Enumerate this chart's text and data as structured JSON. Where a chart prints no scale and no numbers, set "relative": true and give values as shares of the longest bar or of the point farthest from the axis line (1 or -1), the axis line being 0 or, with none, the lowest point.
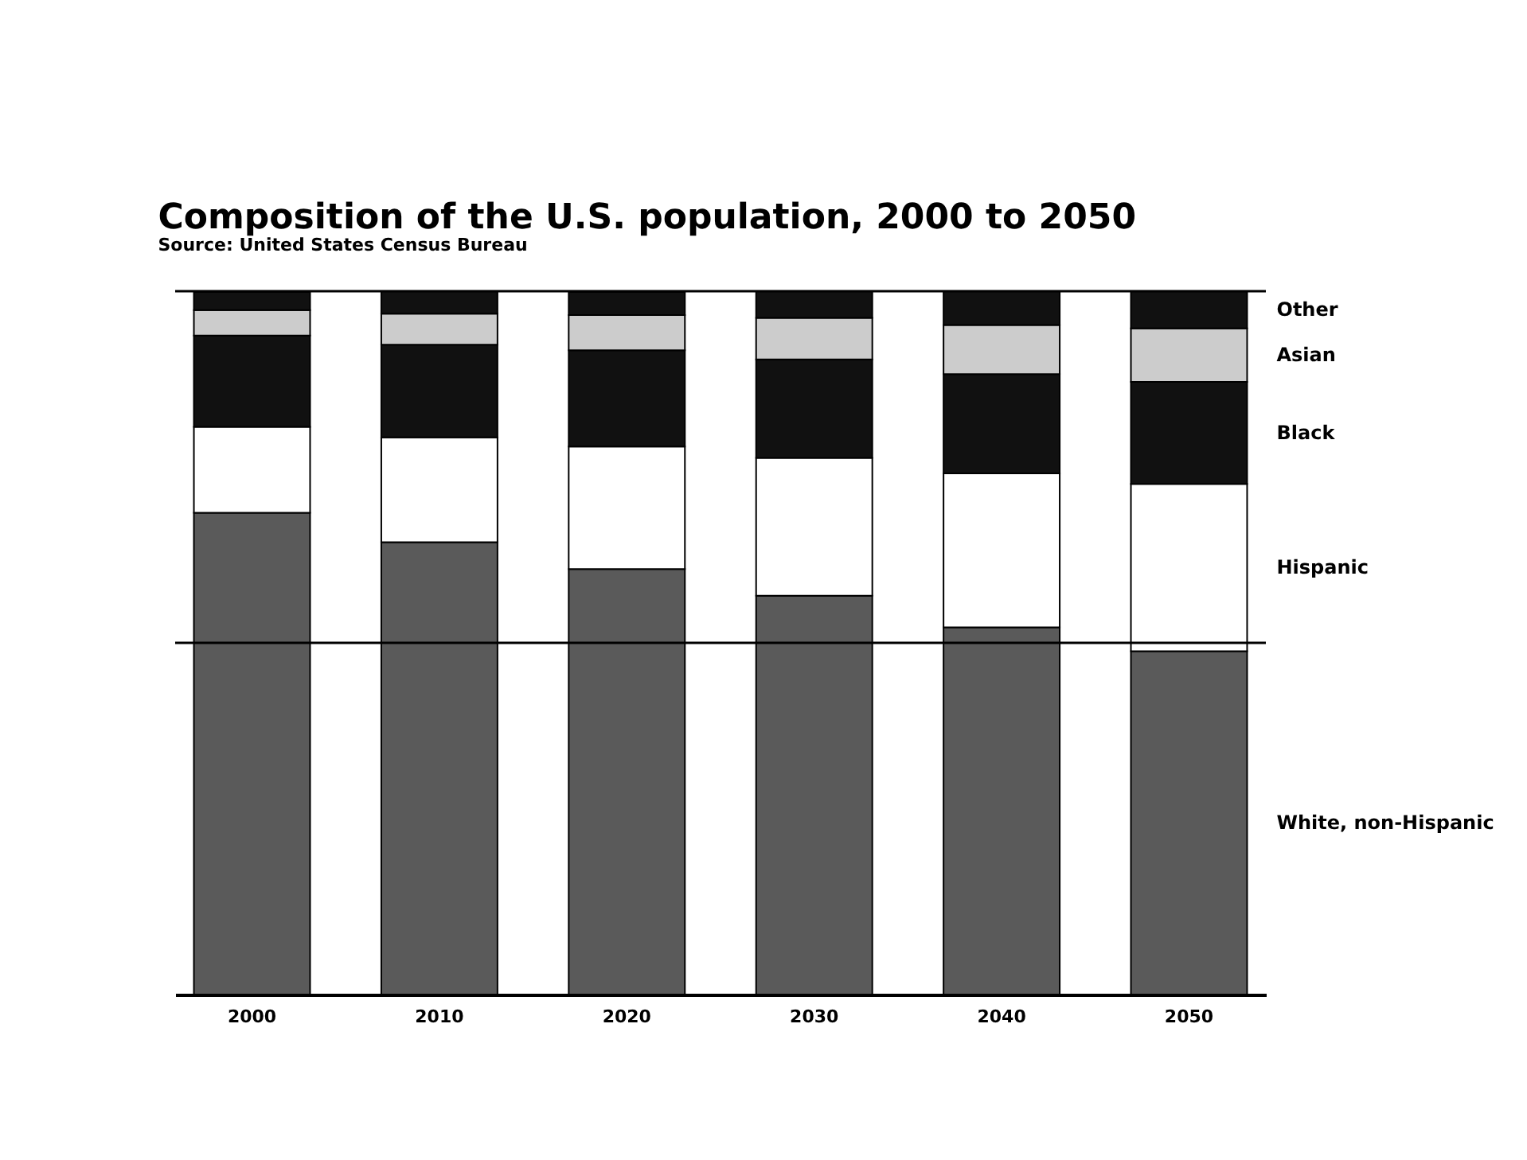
{
  "chart_data": {
    "type": "bar",
    "title": "Composition of the U.S. population, 2000 to 2050",
    "subtitle": "Source: United States Census Bureau",
    "categories": [
      "2000",
      "2010",
      "2020",
      "2030",
      "2040",
      "2050"
    ],
    "stacked": true,
    "relative": true,
    "series": [
      {
        "name": "White, non-Hispanic",
        "color": "#5a5a5a",
        "values": [
          0.685,
          0.643,
          0.605,
          0.567,
          0.522,
          0.488
        ]
      },
      {
        "name": "Hispanic",
        "color": "#ffffff",
        "values": [
          0.122,
          0.149,
          0.174,
          0.196,
          0.219,
          0.238
        ]
      },
      {
        "name": "Black",
        "color": "#111111",
        "values": [
          0.13,
          0.132,
          0.137,
          0.14,
          0.141,
          0.145
        ]
      },
      {
        "name": "Asian",
        "color": "#cccccc",
        "values": [
          0.036,
          0.044,
          0.05,
          0.059,
          0.07,
          0.076
        ]
      },
      {
        "name": "Other",
        "color": "#111111",
        "values": [
          0.026,
          0.032,
          0.033,
          0.038,
          0.048,
          0.053
        ]
      }
    ],
    "ref_lines": [
      {
        "axis": "y",
        "value": 0.5,
        "color": "#000000"
      },
      {
        "axis": "y",
        "value": 1,
        "color": "#000000"
      }
    ],
    "legend": "right"
  }
}
